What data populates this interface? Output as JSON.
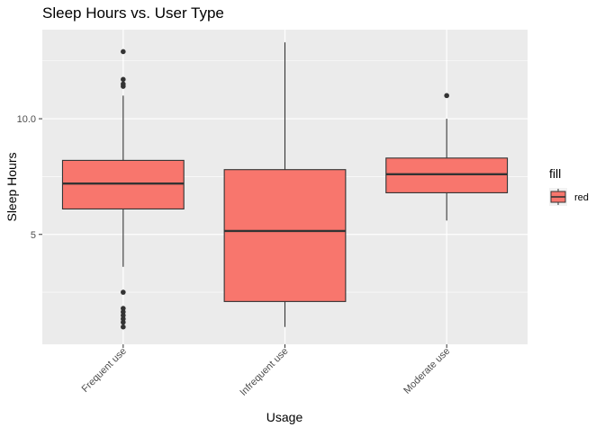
{
  "chart_data": {
    "type": "box",
    "title": "Sleep Hours vs. User Type",
    "xlabel": "Usage",
    "ylabel": "Sleep Hours",
    "ylim": [
      0.25,
      13.85
    ],
    "y_ticks": [
      5,
      10
    ],
    "grid": true,
    "categories": [
      "Frequent use",
      "Infrequent use",
      "Moderate use"
    ],
    "series": [
      {
        "category": "Frequent use",
        "whisker_low": 3.6,
        "q1": 6.1,
        "median": 7.2,
        "q3": 8.2,
        "whisker_high": 11.0,
        "outliers": [
          12.9,
          11.7,
          11.5,
          11.4,
          2.5,
          1.8,
          1.65,
          1.5,
          1.35,
          1.2,
          1.0
        ]
      },
      {
        "category": "Infrequent use",
        "whisker_low": 1.0,
        "q1": 2.1,
        "median": 5.15,
        "q3": 7.8,
        "whisker_high": 13.3,
        "outliers": []
      },
      {
        "category": "Moderate use",
        "whisker_low": 5.6,
        "q1": 6.8,
        "median": 7.6,
        "q3": 8.3,
        "whisker_high": 10.0,
        "outliers": [
          11.0
        ]
      }
    ],
    "legend": {
      "title": "fill",
      "entries": [
        "red"
      ],
      "position": "right"
    },
    "colors": {
      "box_fill": "#F8766D",
      "box_stroke": "#333333",
      "panel_bg": "#EBEBEB",
      "grid_major": "#FFFFFF"
    }
  }
}
